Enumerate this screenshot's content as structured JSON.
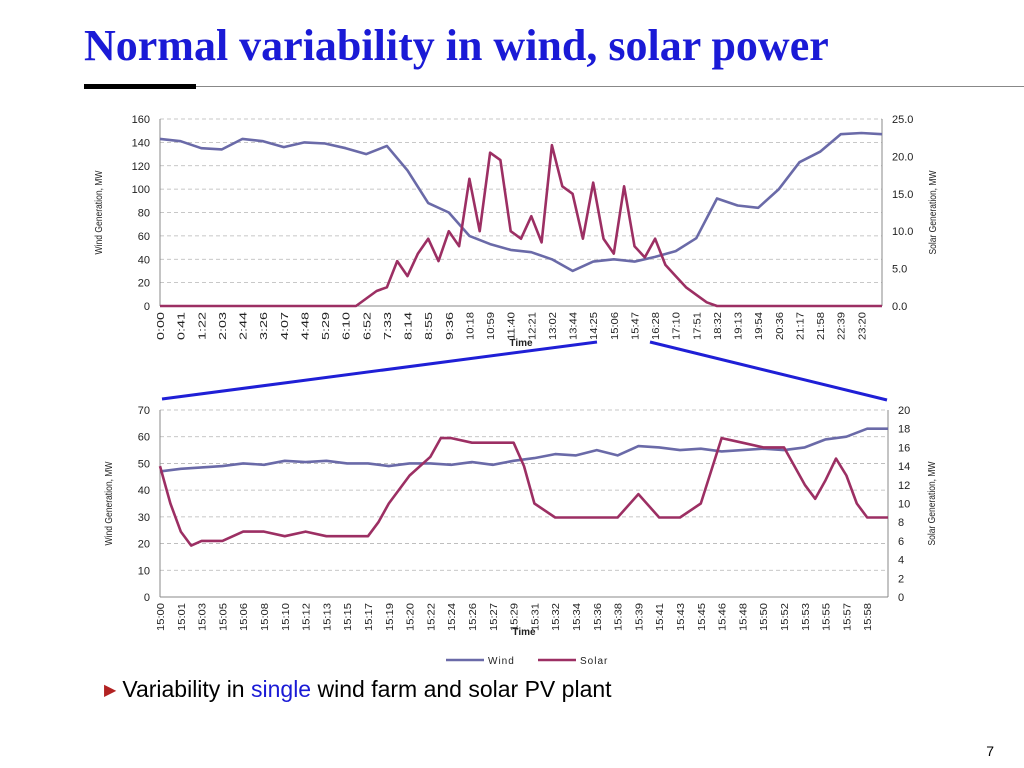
{
  "slide": {
    "title": "Normal variability in wind, solar power",
    "bullet": {
      "pre": "Variability in ",
      "highlight": "single",
      "post": " wind farm and solar PV plant"
    },
    "page_number": "7",
    "colors": {
      "title": "#1a1ad6",
      "wind": "#6a6aa8",
      "solar": "#9c2f63",
      "zoom_line": "#1f1fd6",
      "bullet_arrow": "#b22222"
    }
  },
  "chart_data": [
    {
      "type": "line",
      "xlabel": "Time",
      "ylabel_left": "Wind Generation, MW",
      "ylabel_right": "Solar Generation, MW",
      "ylim_left": [
        0,
        160
      ],
      "ylim_right": [
        0,
        25
      ],
      "yticks_left": [
        "0",
        "20",
        "40",
        "60",
        "80",
        "100",
        "120",
        "140",
        "160"
      ],
      "yticks_right": [
        "0.0",
        "5.0",
        "10.0",
        "15.0",
        "20.0",
        "25.0"
      ],
      "x_ticks": [
        "0:00",
        "0:41",
        "1:22",
        "2:03",
        "2:44",
        "3:26",
        "4:07",
        "4:48",
        "5:29",
        "6:10",
        "6:52",
        "7:33",
        "8:14",
        "8:55",
        "9:36",
        "10:18",
        "10:59",
        "11:40",
        "12:21",
        "13:02",
        "13:44",
        "14:25",
        "15:06",
        "15:47",
        "16:28",
        "17:10",
        "17:51",
        "18:32",
        "19:13",
        "19:54",
        "20:36",
        "21:17",
        "21:58",
        "22:39",
        "23:20"
      ],
      "grid": "horizontal dashed",
      "series": [
        {
          "name": "Wind",
          "axis": "left",
          "x": [
            0.0,
            1.0,
            2.0,
            3.0,
            4.0,
            5.0,
            6.0,
            7.0,
            8.0,
            9.0,
            10.0,
            11.0,
            12.0,
            13.0,
            14.0,
            15.0,
            16.0,
            17.0,
            18.0,
            19.0,
            20.0,
            21.0,
            22.0,
            23.0,
            24.0,
            25.0,
            26.0,
            27.0,
            28.0,
            29.0,
            30.0,
            31.0,
            32.0,
            33.0,
            34.0,
            35.0
          ],
          "values": [
            143,
            141,
            135,
            134,
            143,
            141,
            136,
            140,
            139,
            135,
            130,
            137,
            116,
            88,
            80,
            60,
            53,
            48,
            46,
            40,
            30,
            38,
            40,
            38,
            42,
            47,
            58,
            92,
            86,
            84,
            100,
            123,
            132,
            147,
            148,
            147
          ]
        },
        {
          "name": "Solar",
          "axis": "right",
          "x": [
            0.0,
            9.5,
            10.0,
            10.5,
            11.0,
            11.5,
            12.0,
            12.5,
            13.0,
            13.5,
            14.0,
            14.5,
            15.0,
            15.5,
            16.0,
            16.5,
            17.0,
            17.5,
            18.0,
            18.5,
            19.0,
            19.5,
            20.0,
            20.5,
            21.0,
            21.5,
            22.0,
            22.5,
            23.0,
            23.5,
            24.0,
            24.5,
            25.0,
            25.5,
            26.0,
            26.5,
            27.0,
            27.5,
            28.0,
            28.5,
            29.0,
            29.5,
            30.0,
            35.0
          ],
          "values": [
            0,
            0,
            1.0,
            2.0,
            2.5,
            6.0,
            4.0,
            7.0,
            9.0,
            6.0,
            10.0,
            8.0,
            17.0,
            10.0,
            20.5,
            19.5,
            10.0,
            9.0,
            12.0,
            8.5,
            21.5,
            16.0,
            15.0,
            9.0,
            16.5,
            9.0,
            7.0,
            16.0,
            8.0,
            6.5,
            9.0,
            5.5,
            4.0,
            2.5,
            1.5,
            0.5,
            0,
            0,
            0,
            0,
            0,
            0,
            0,
            0
          ]
        }
      ]
    },
    {
      "type": "line",
      "xlabel": "Time",
      "ylabel_left": "Wind Generation, MW",
      "ylabel_right": "Solar Generation, MW",
      "ylim_left": [
        0,
        70
      ],
      "ylim_right": [
        0,
        20
      ],
      "yticks_left": [
        "0",
        "10",
        "20",
        "30",
        "40",
        "50",
        "60",
        "70"
      ],
      "yticks_right": [
        "0",
        "2",
        "4",
        "6",
        "8",
        "10",
        "12",
        "14",
        "16",
        "18",
        "20"
      ],
      "x_ticks": [
        "15:00",
        "15:01",
        "15:03",
        "15:05",
        "15:06",
        "15:08",
        "15:10",
        "15:12",
        "15:13",
        "15:15",
        "15:17",
        "15:19",
        "15:20",
        "15:22",
        "15:24",
        "15:26",
        "15:27",
        "15:29",
        "15:31",
        "15:32",
        "15:34",
        "15:36",
        "15:38",
        "15:39",
        "15:41",
        "15:43",
        "15:45",
        "15:46",
        "15:48",
        "15:50",
        "15:52",
        "15:53",
        "15:55",
        "15:57",
        "15:58"
      ],
      "grid": "horizontal dashed",
      "legend": {
        "position": "bottom",
        "entries": [
          "Wind",
          "Solar"
        ]
      },
      "series": [
        {
          "name": "Wind",
          "axis": "left",
          "x": [
            0,
            1,
            2,
            3,
            4,
            5,
            6,
            7,
            8,
            9,
            10,
            11,
            12,
            13,
            14,
            15,
            16,
            17,
            18,
            19,
            20,
            21,
            22,
            23,
            24,
            25,
            26,
            27,
            28,
            29,
            30,
            31,
            32,
            33,
            34,
            35
          ],
          "values": [
            47,
            48,
            48.5,
            49,
            50,
            49.5,
            51,
            50.5,
            51,
            50,
            50,
            49,
            50,
            50,
            49.5,
            50.5,
            49.5,
            51,
            52,
            53.5,
            53,
            55,
            53,
            56.5,
            56,
            55,
            55.5,
            54.5,
            55,
            55.5,
            55,
            56,
            59,
            60,
            63,
            63
          ]
        },
        {
          "name": "Solar",
          "axis": "right",
          "x": [
            0,
            0.5,
            1,
            1.5,
            2,
            3,
            4,
            5,
            6,
            7,
            8,
            9,
            10,
            10.5,
            11,
            12,
            13,
            13.5,
            14,
            15,
            16,
            17,
            17.5,
            18,
            19,
            20,
            21,
            22,
            23,
            24,
            25,
            26,
            27,
            28,
            29,
            30,
            31,
            31.5,
            32,
            32.5,
            33,
            33.5,
            34,
            35
          ],
          "values": [
            14,
            10,
            7,
            5.5,
            6,
            6,
            7,
            7,
            6.5,
            7,
            6.5,
            6.5,
            6.5,
            8,
            10,
            13,
            15,
            17,
            17,
            16.5,
            16.5,
            16.5,
            14,
            10,
            8.5,
            8.5,
            8.5,
            8.5,
            11,
            8.5,
            8.5,
            10,
            17,
            16.5,
            16,
            16,
            12,
            10.5,
            12.5,
            14.8,
            13,
            10,
            8.5,
            8.5
          ]
        }
      ]
    }
  ]
}
